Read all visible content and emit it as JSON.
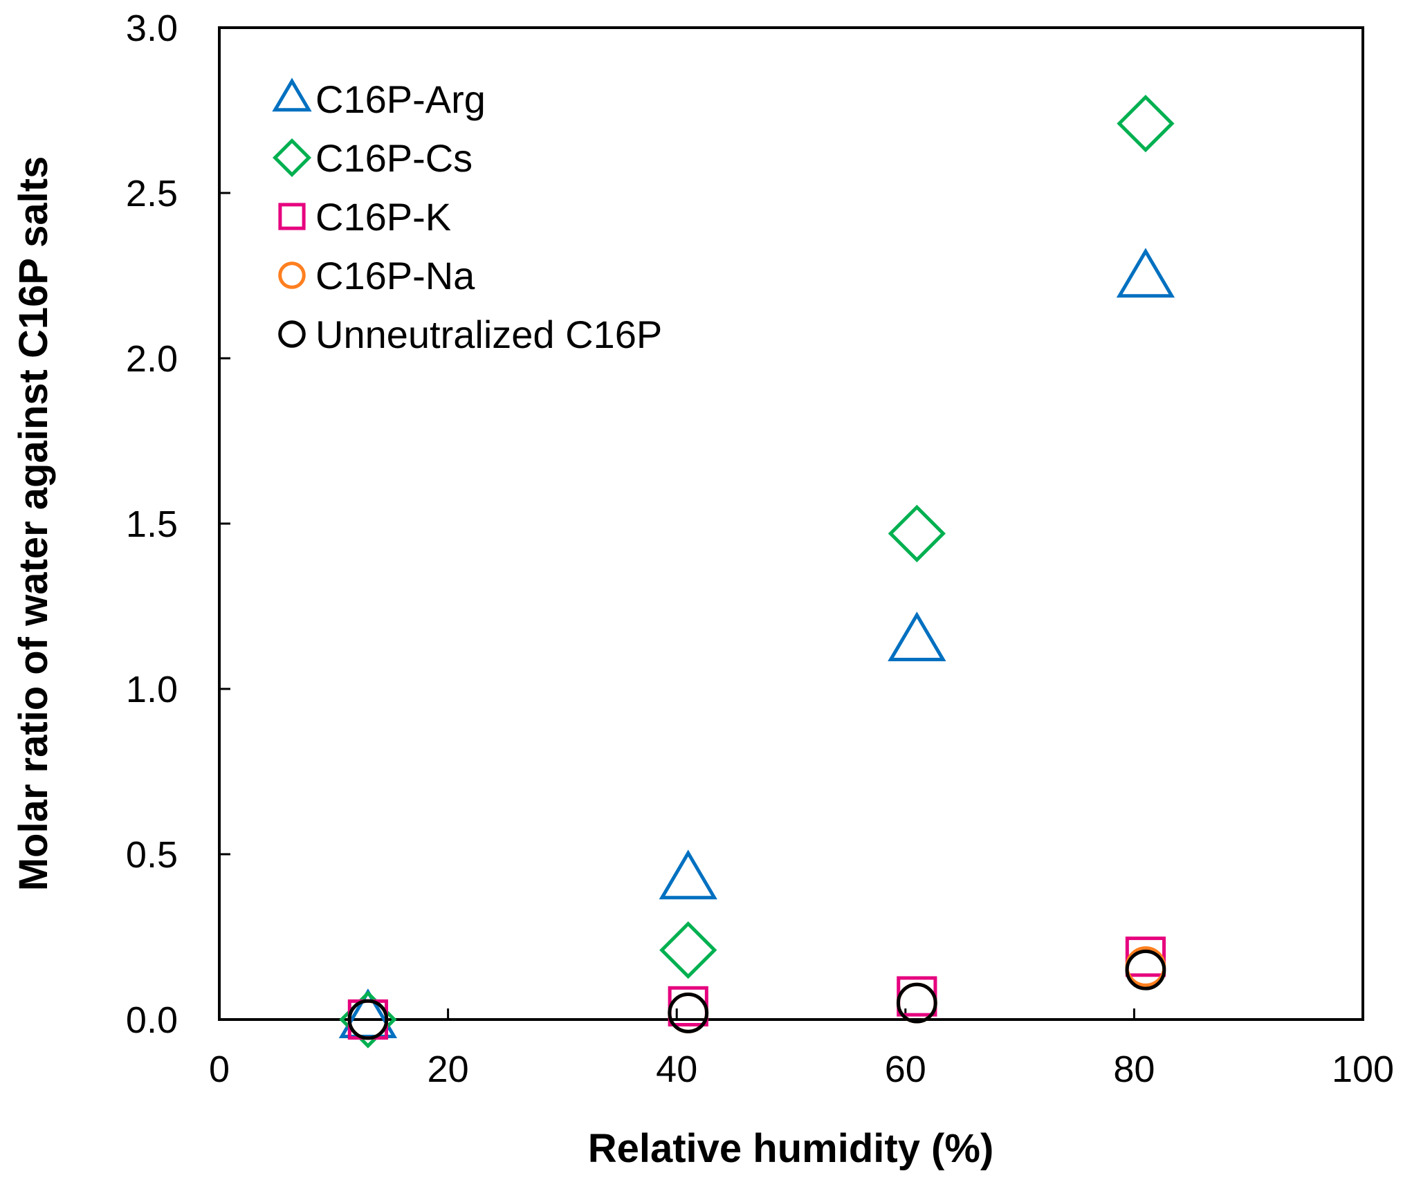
{
  "chart_data": {
    "type": "scatter",
    "title": "",
    "xlabel": "Relative humidity (%)",
    "ylabel": "Molar ratio of water against C16P salts",
    "xlim": [
      0,
      100
    ],
    "ylim": [
      0,
      3.0
    ],
    "xticks": [
      0,
      20,
      40,
      60,
      80,
      100
    ],
    "xtick_labels": [
      "0",
      "20",
      "40",
      "60",
      "80",
      "100"
    ],
    "yticks": [
      0,
      0.5,
      1.0,
      1.5,
      2.0,
      2.5,
      3.0
    ],
    "ytick_labels": [
      "0.0",
      "0.5",
      "1.0",
      "1.5",
      "2.0",
      "2.5",
      "3.0"
    ],
    "grid": false,
    "legend_position": "top-left",
    "series": [
      {
        "name": "C16P-Arg",
        "marker": "triangle",
        "color": "#0070c0",
        "x": [
          13,
          41,
          61,
          81
        ],
        "y": [
          0.0,
          0.42,
          1.14,
          2.24
        ]
      },
      {
        "name": "C16P-Cs",
        "marker": "diamond",
        "color": "#00b050",
        "x": [
          13,
          41,
          61,
          81
        ],
        "y": [
          0.0,
          0.21,
          1.47,
          2.71
        ]
      },
      {
        "name": "C16P-K",
        "marker": "square",
        "color": "#e6007e",
        "x": [
          13,
          41,
          61,
          81
        ],
        "y": [
          0.0,
          0.04,
          0.07,
          0.19
        ]
      },
      {
        "name": "C16P-Na",
        "marker": "circle",
        "color": "#ff7f1f",
        "x": [
          13,
          41,
          61,
          81
        ],
        "y": [
          0.0,
          0.02,
          0.05,
          0.16
        ]
      },
      {
        "name": "Unneutralized C16P",
        "marker": "circle",
        "color": "#000000",
        "x": [
          13,
          41,
          61,
          81
        ],
        "y": [
          0.0,
          0.02,
          0.05,
          0.15
        ]
      }
    ]
  }
}
